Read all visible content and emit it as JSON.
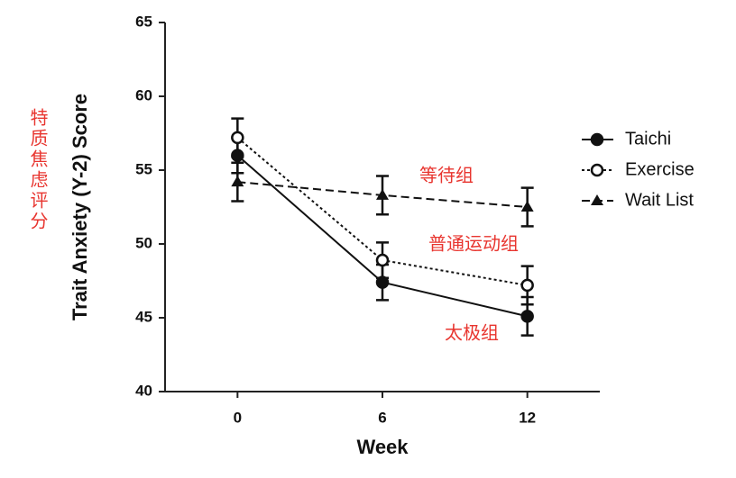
{
  "chart_data": {
    "type": "line",
    "x_label": "Week",
    "y_label": "Trait Anxiety (Y-2) Score",
    "side_label": "特质焦虑评分",
    "annotations": [
      "等待组",
      "普通运动组",
      "太极组"
    ],
    "x": [
      0,
      6,
      12
    ],
    "xlim": [
      -3,
      15
    ],
    "xticks": [
      0,
      6,
      12
    ],
    "ylim": [
      40,
      65
    ],
    "yticks": [
      40,
      45,
      50,
      55,
      60,
      65
    ],
    "grid": false,
    "legend": "right",
    "series": [
      {
        "name": "Taichi",
        "color": "#111111",
        "dash": "solid",
        "marker": "circle",
        "values": [
          56.0,
          47.4,
          45.1
        ],
        "errors": [
          1.2,
          1.2,
          1.3
        ]
      },
      {
        "name": "Exercise",
        "color": "#111111",
        "dash": "dotted",
        "marker": "open-circle",
        "values": [
          57.2,
          48.9,
          47.2
        ],
        "errors": [
          1.3,
          1.2,
          1.3
        ]
      },
      {
        "name": "Wait List",
        "color": "#111111",
        "dash": "dashed",
        "marker": "triangle",
        "values": [
          54.2,
          53.3,
          52.5
        ],
        "errors": [
          1.3,
          1.3,
          1.3
        ]
      }
    ]
  }
}
